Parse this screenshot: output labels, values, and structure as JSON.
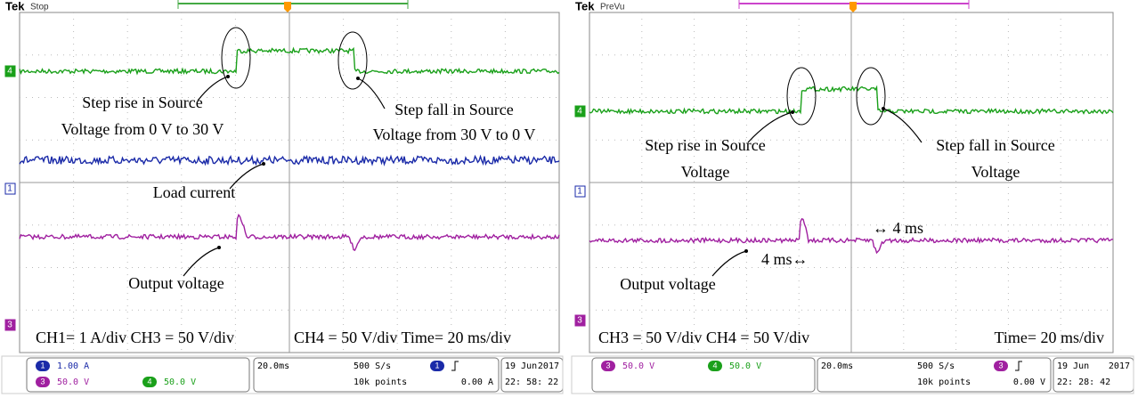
{
  "panels": [
    {
      "brand": "Tek",
      "state": "Stop",
      "markers": [
        "4",
        "1",
        "3"
      ],
      "annotations": [
        [
          "Step rise in Source",
          "Voltage from 0 V to 30 V"
        ],
        [
          "Step fall in Source",
          "Voltage from 30 V to 0 V"
        ],
        [
          "Load current"
        ],
        [
          "Output voltage"
        ],
        [
          "CH1= 1 A/div  CH3 = 50 V/div"
        ],
        [
          "CH4 = 50 V/div  Time= 20 ms/div"
        ]
      ],
      "status": {
        "channels": [
          {
            "id": "1",
            "scale": "1.00 A"
          },
          {
            "id": "3",
            "scale": "50.0 V"
          },
          {
            "id": "4",
            "scale": "50.0 V"
          }
        ],
        "timebase": "20.0ms",
        "rate": "500 S/s",
        "points": "10k points",
        "trigger_channel": "1",
        "trigger_level": "0.00 A",
        "date": "19 Jun",
        "year": "2017",
        "time": "22: 58: 22"
      }
    },
    {
      "brand": "Tek",
      "state": "PreVu",
      "markers": [
        "4",
        "1",
        "3"
      ],
      "annotations": [
        [
          "Step rise in Source",
          "Voltage"
        ],
        [
          "Step fall in Source",
          "Voltage"
        ],
        [
          "4 ms↔"
        ],
        [
          "↔ 4 ms"
        ],
        [
          "Output voltage"
        ],
        [
          "CH3 = 50 V/div  CH4 = 50 V/div"
        ],
        [
          "Time= 20 ms/div"
        ]
      ],
      "status": {
        "channels": [
          {
            "id": "3",
            "scale": "50.0 V"
          },
          {
            "id": "4",
            "scale": "50.0 V"
          }
        ],
        "timebase": "20.0ms",
        "rate": "500 S/s",
        "points": "10k points",
        "trigger_channel": "3",
        "trigger_level": "0.00 V",
        "date": "19 Jun",
        "year": "2017",
        "time": "22: 28: 42"
      }
    }
  ]
}
